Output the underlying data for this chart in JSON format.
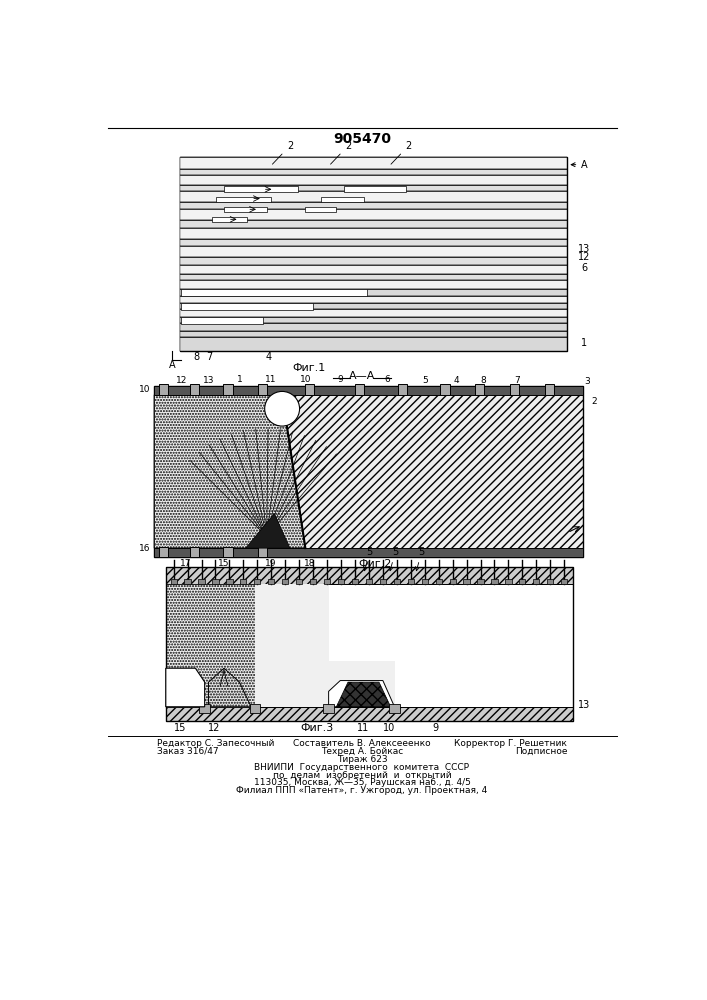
{
  "title": "905470",
  "title_fontsize": 10,
  "background_color": "#ffffff",
  "fig1_label": "Фиг.1",
  "fig2_label": "Фиг.2",
  "fig3_label": "Фиг.3"
}
